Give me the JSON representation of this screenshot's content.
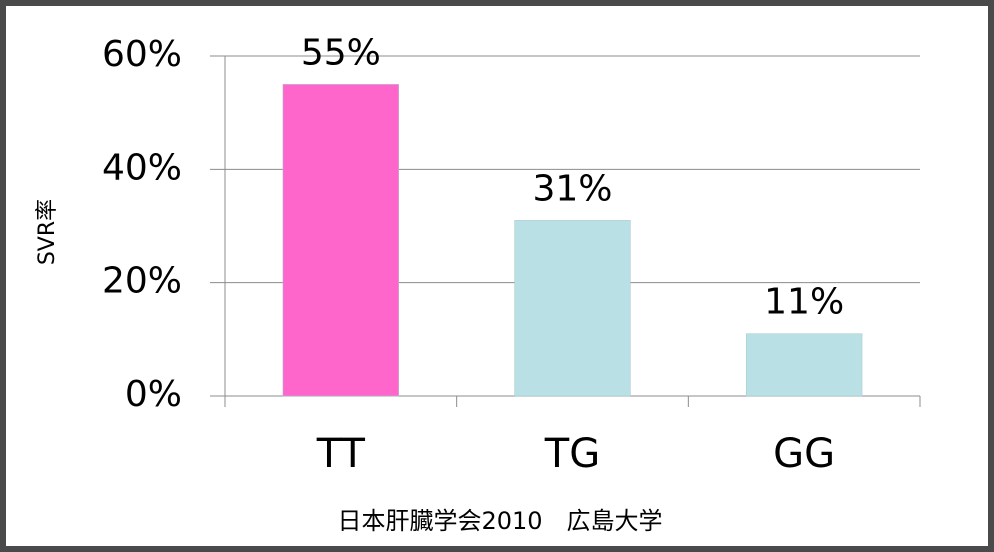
{
  "chart_data": {
    "type": "bar",
    "y_label": "SVR率",
    "x_label": "日本肝臓学会2010　広島大学",
    "categories": [
      "TT",
      "TG",
      "GG"
    ],
    "values": [
      55,
      31,
      11
    ],
    "value_labels": [
      "55%",
      "31%",
      "11%"
    ],
    "colors": [
      "#ff66cc",
      "#b9e0e4",
      "#b9e0e4"
    ],
    "ylim": [
      0,
      60
    ],
    "yticks": [
      {
        "value": 0,
        "label": "0%"
      },
      {
        "value": 20,
        "label": "20%"
      },
      {
        "value": 40,
        "label": "40%"
      },
      {
        "value": 60,
        "label": "60%"
      }
    ],
    "grid": true
  }
}
